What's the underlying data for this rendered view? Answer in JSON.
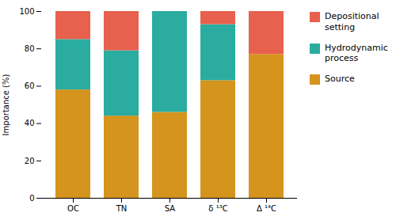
{
  "chart_data": {
    "type": "bar",
    "stacked": true,
    "categories": [
      "OC",
      "TN",
      "SA",
      "δ ¹³C",
      "Δ ¹⁴C"
    ],
    "series": [
      {
        "name": "Source",
        "color": "#d4941e",
        "values": [
          58,
          44,
          46,
          63,
          77
        ]
      },
      {
        "name": "Hydrodynamic\nprocess",
        "color": "#2aada0",
        "values": [
          27,
          35,
          54,
          30,
          0
        ]
      },
      {
        "name": "Depositional\nsetting",
        "color": "#e8614e",
        "values": [
          15,
          21,
          0,
          7,
          23
        ]
      }
    ],
    "ylabel": "Importance (%)",
    "ylim": [
      0,
      100
    ],
    "yticks": [
      0,
      20,
      40,
      60,
      80,
      100
    ],
    "grid": false,
    "legend": "right"
  }
}
